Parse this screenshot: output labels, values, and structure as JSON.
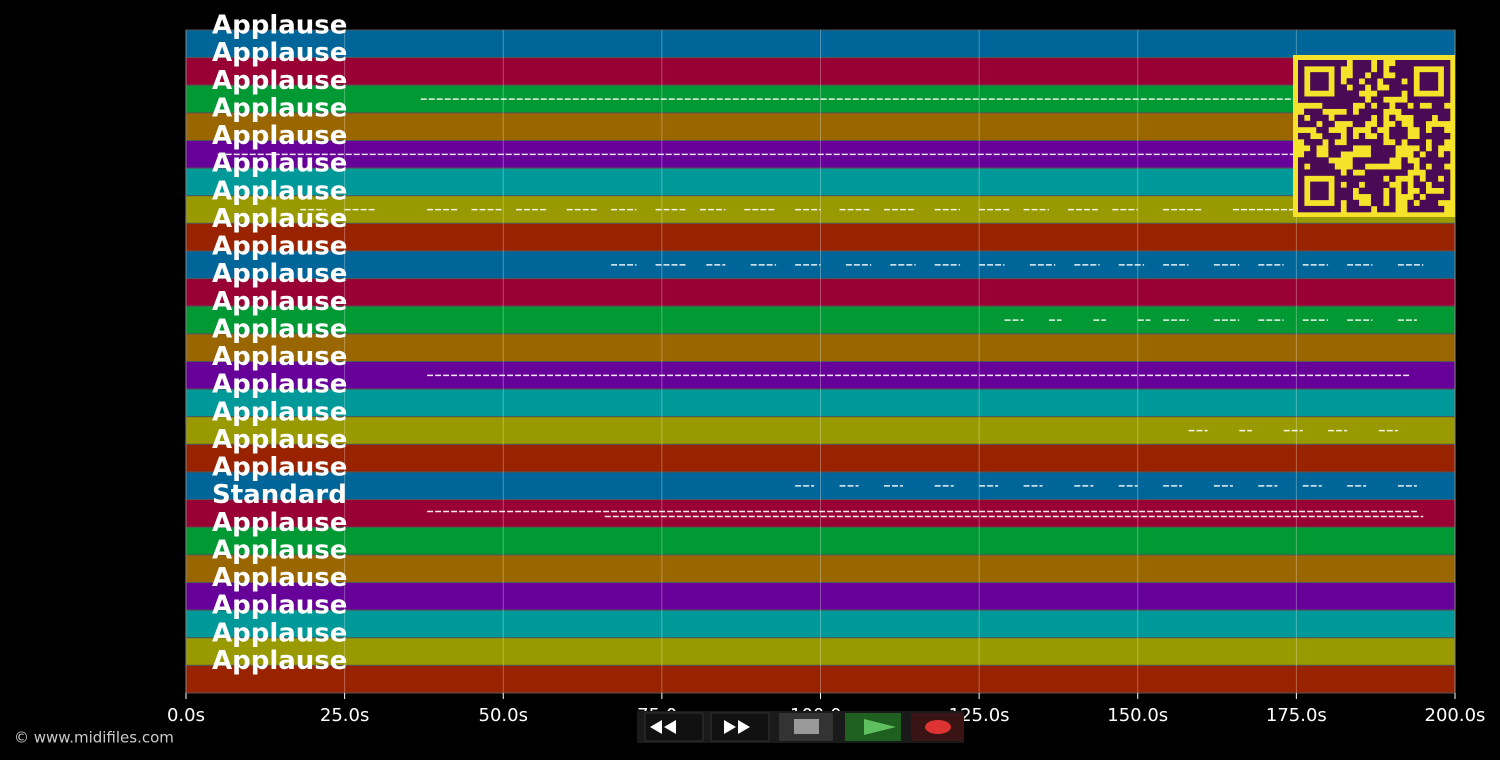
{
  "tracks": [
    {
      "name": "Applause",
      "notes": []
    },
    {
      "name": "Applause",
      "notes": []
    },
    {
      "name": "Applause",
      "notes": [
        [
          37,
          175
        ]
      ]
    },
    {
      "name": "Applause",
      "notes": []
    },
    {
      "name": "Applause",
      "notes": [
        [
          5,
          175
        ]
      ]
    },
    {
      "name": "Applause",
      "notes": []
    },
    {
      "name": "Applause",
      "notes": [
        [
          18,
          22
        ],
        [
          25,
          30
        ],
        [
          38,
          43
        ],
        [
          45,
          50
        ],
        [
          52,
          57
        ],
        [
          60,
          65
        ],
        [
          67,
          71
        ],
        [
          74,
          79
        ],
        [
          81,
          85
        ],
        [
          88,
          93
        ],
        [
          96,
          100
        ],
        [
          103,
          108
        ],
        [
          110,
          115
        ],
        [
          118,
          122
        ],
        [
          125,
          130
        ],
        [
          132,
          136
        ],
        [
          139,
          144
        ],
        [
          146,
          150
        ],
        [
          154,
          160
        ],
        [
          165,
          175
        ]
      ]
    },
    {
      "name": "Applause",
      "notes": []
    },
    {
      "name": "Applause",
      "notes": [
        [
          67,
          71
        ],
        [
          74,
          79
        ],
        [
          82,
          85
        ],
        [
          89,
          93
        ],
        [
          96,
          100
        ],
        [
          104,
          108
        ],
        [
          111,
          115
        ],
        [
          118,
          122
        ],
        [
          125,
          129
        ],
        [
          133,
          137
        ],
        [
          140,
          144
        ],
        [
          147,
          151
        ],
        [
          154,
          158
        ],
        [
          162,
          166
        ],
        [
          169,
          173
        ],
        [
          176,
          180
        ],
        [
          183,
          187
        ],
        [
          191,
          195
        ]
      ]
    },
    {
      "name": "Applause",
      "notes": []
    },
    {
      "name": "Applause",
      "notes": [
        [
          129,
          132
        ],
        [
          136,
          138
        ],
        [
          143,
          145
        ],
        [
          150,
          152
        ],
        [
          154,
          158
        ],
        [
          162,
          166
        ],
        [
          169,
          173
        ],
        [
          176,
          180
        ],
        [
          183,
          187
        ],
        [
          191,
          194
        ]
      ]
    },
    {
      "name": "Applause",
      "notes": []
    },
    {
      "name": "Applause",
      "notes": [
        [
          38,
          193
        ]
      ]
    },
    {
      "name": "Applause",
      "notes": []
    },
    {
      "name": "Applause",
      "notes": [
        [
          158,
          161
        ],
        [
          166,
          168
        ],
        [
          173,
          176
        ],
        [
          180,
          183
        ],
        [
          188,
          191
        ]
      ]
    },
    {
      "name": "Applause",
      "notes": []
    },
    {
      "name": "Applause",
      "notes": [
        [
          96,
          99
        ],
        [
          103,
          106
        ],
        [
          110,
          113
        ],
        [
          118,
          121
        ],
        [
          125,
          128
        ],
        [
          132,
          135
        ],
        [
          140,
          143
        ],
        [
          147,
          150
        ],
        [
          154,
          157
        ],
        [
          162,
          165
        ],
        [
          169,
          172
        ],
        [
          176,
          179
        ],
        [
          183,
          186
        ],
        [
          191,
          194
        ]
      ]
    },
    {
      "name": "Standard",
      "notes": [
        [
          38,
          194
        ],
        [
          66,
          195
        ]
      ]
    },
    {
      "name": "Applause",
      "notes": []
    },
    {
      "name": "Applause",
      "notes": []
    },
    {
      "name": "Applause",
      "notes": []
    },
    {
      "name": "Applause",
      "notes": []
    },
    {
      "name": "Applause",
      "notes": []
    },
    {
      "name": "Applause",
      "notes": []
    }
  ],
  "lane_colors": [
    "#006699",
    "#990033",
    "#009933",
    "#996600",
    "#660099",
    "#009999",
    "#999900",
    "#992200"
  ],
  "time_axis": {
    "range": [
      0,
      200
    ],
    "ticks": [
      {
        "value": 0,
        "label": "0.0s"
      },
      {
        "value": 25,
        "label": "25.0s"
      },
      {
        "value": 50,
        "label": "50.0s"
      },
      {
        "value": 75,
        "label": "75.0s"
      },
      {
        "value": 100,
        "label": "100.0s"
      },
      {
        "value": 125,
        "label": "125.0s"
      },
      {
        "value": 150,
        "label": "150.0s"
      },
      {
        "value": 175,
        "label": "175.0s"
      },
      {
        "value": 200,
        "label": "200.0s"
      }
    ]
  },
  "footer": "© www.midifiles.com"
}
